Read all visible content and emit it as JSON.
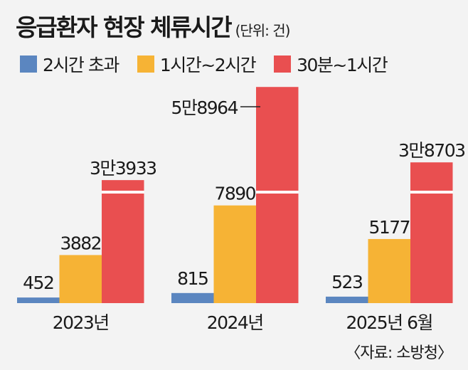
{
  "chart_data": {
    "type": "bar",
    "title": "응급환자 현장 체류시간",
    "unit": "(단위: 건)",
    "categories": [
      "2023년",
      "2024년",
      "2025년 6월"
    ],
    "series": [
      {
        "name": "2시간 초과",
        "color": "#5b86c0",
        "values": [
          452,
          815,
          523
        ],
        "labels": [
          "452",
          "815",
          "523"
        ]
      },
      {
        "name": "1시간~2시간",
        "color": "#f6b335",
        "values": [
          3882,
          7890,
          5177
        ],
        "labels": [
          "3882",
          "7890",
          "5177"
        ]
      },
      {
        "name": "30분~1시간",
        "color": "#e94f50",
        "values": [
          33933,
          58964,
          38703
        ],
        "labels": [
          "3만3933",
          "5만8964",
          "3만8703"
        ],
        "axis_break": true
      }
    ],
    "grid": false,
    "legend": "top-left",
    "source": "〈자료: 소방청〉"
  }
}
